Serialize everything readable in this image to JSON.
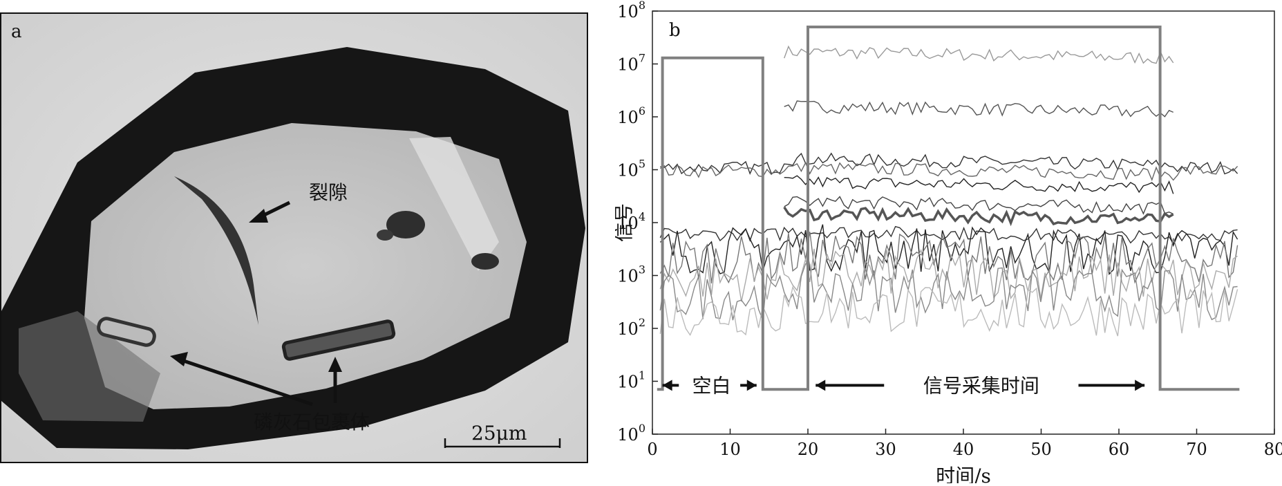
{
  "panel_a": {
    "label": "a",
    "annotations": {
      "fracture": "裂隙",
      "apatite_inclusion": "磷灰石包裹体",
      "scale_bar": "25μm"
    }
  },
  "chart_data": {
    "type": "line",
    "panel_label": "b",
    "xlabel": "时间/s",
    "ylabel": "信号",
    "xlim": [
      0,
      80
    ],
    "ylim": [
      1,
      100000000
    ],
    "yscale": "log",
    "x_ticks": [
      "0",
      "10",
      "20",
      "30",
      "40",
      "50",
      "60",
      "70",
      "80"
    ],
    "y_ticks": [
      "10^0",
      "10^1",
      "10^2",
      "10^3",
      "10^4",
      "10^5",
      "10^6",
      "10^7",
      "10^8"
    ],
    "annotations": {
      "blank": "空白",
      "acquisition": "信号采集时间"
    },
    "windows": [
      {
        "name": "blank",
        "x": [
          1.3,
          14.2
        ],
        "level": 13000000
      },
      {
        "name": "acquisition",
        "x": [
          20.0,
          65.3
        ],
        "level": 50000000
      }
    ],
    "baseline_level": 7,
    "series": [
      {
        "values": {
          "before": 7,
          "during": 17000000
        },
        "color": "#999999"
      },
      {
        "values": {
          "before": 7,
          "during": 1600000
        },
        "color": "#555555"
      },
      {
        "values": {
          "before": 110000,
          "during": 160000
        },
        "color": "#333333"
      },
      {
        "values": {
          "before": 95000,
          "during": 110000
        },
        "color": "#666666"
      },
      {
        "values": {
          "before": 7,
          "during": 60000
        },
        "color": "#222222"
      },
      {
        "values": {
          "before": 7,
          "during": 25000
        },
        "color": "#444444"
      },
      {
        "values": {
          "before": 7,
          "during": 15000
        },
        "color": "#555555",
        "bold": true
      },
      {
        "values": {
          "before": 6000,
          "during": 7000
        },
        "color": "#333333"
      },
      {
        "values": {
          "before": 3000,
          "during": 3500
        },
        "color": "#222222"
      },
      {
        "values": {
          "before": 2000,
          "during": 2500
        },
        "color": "#777777"
      },
      {
        "values": {
          "before": 900,
          "during": 1200
        },
        "color": "#aaaaaa"
      },
      {
        "values": {
          "before": 400,
          "during": 600
        },
        "color": "#888888"
      },
      {
        "values": {
          "before": 200,
          "during": 250
        },
        "color": "#bbbbbb"
      }
    ]
  }
}
